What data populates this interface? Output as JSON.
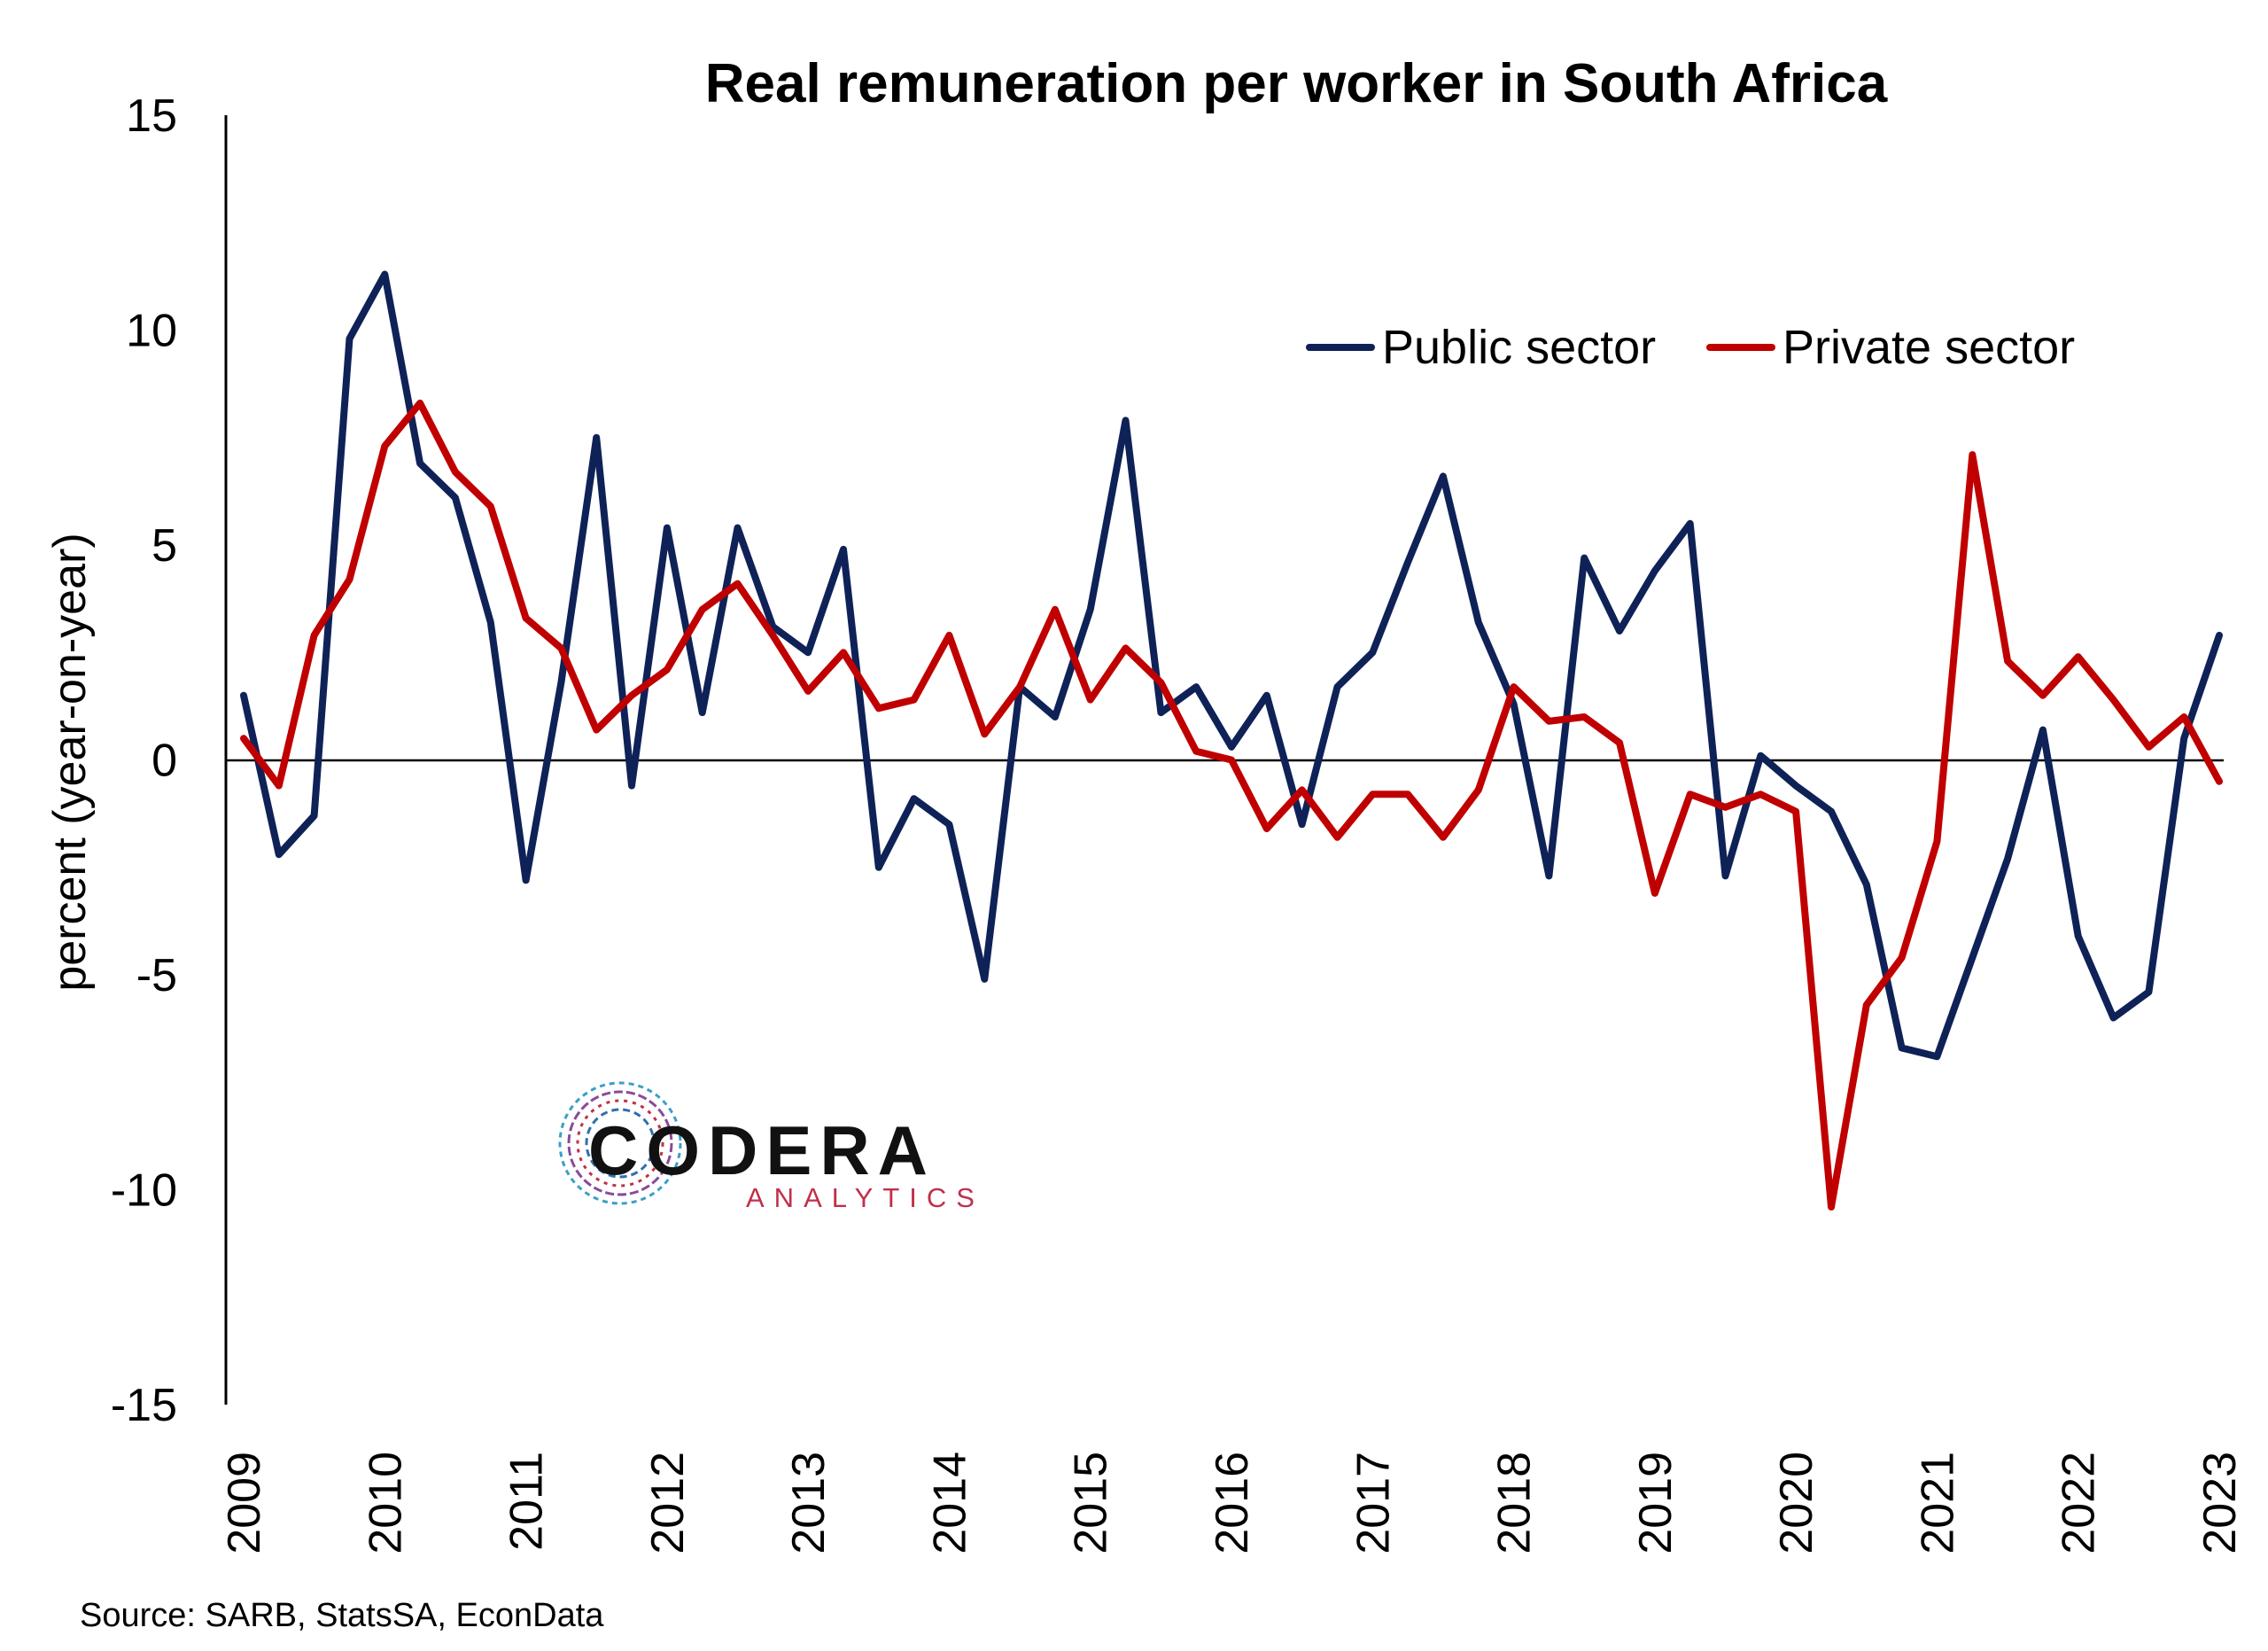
{
  "chart_data": {
    "type": "line",
    "title": "Real remuneration per worker in South Africa",
    "ylabel": "percent (year-on-year)",
    "xlabel": "",
    "ylim": [
      -15,
      15
    ],
    "yticks": [
      15,
      10,
      5,
      0,
      -5,
      -10,
      -15
    ],
    "ytick_labels": [
      "15",
      "10",
      "5",
      "0",
      "-5",
      "-10",
      "-15"
    ],
    "xlim": [
      2009,
      2023
    ],
    "xticks": [
      "2009",
      "2010",
      "2011",
      "2012",
      "2013",
      "2014",
      "2015",
      "2016",
      "2017",
      "2018",
      "2019",
      "2020",
      "2021",
      "2022",
      "2023"
    ],
    "legend_position": "top-right",
    "zero_line": true,
    "grid": false,
    "series": [
      {
        "name": "Public sector",
        "color": "#0f2257",
        "x": [
          2009.0,
          2009.25,
          2009.5,
          2009.75,
          2010.0,
          2010.25,
          2010.5,
          2010.75,
          2011.0,
          2011.25,
          2011.5,
          2011.75,
          2012.0,
          2012.25,
          2012.5,
          2012.75,
          2013.0,
          2013.25,
          2013.5,
          2013.75,
          2014.0,
          2014.25,
          2014.5,
          2014.75,
          2015.0,
          2015.25,
          2015.5,
          2015.75,
          2016.0,
          2016.25,
          2016.5,
          2016.75,
          2017.0,
          2017.25,
          2017.5,
          2017.75,
          2018.0,
          2018.25,
          2018.5,
          2018.75,
          2019.0,
          2019.25,
          2019.5,
          2019.75,
          2020.0,
          2020.25,
          2020.5,
          2020.75,
          2021.0,
          2021.25,
          2021.5,
          2021.75,
          2022.0,
          2022.25,
          2022.5,
          2022.75,
          2023.0
        ],
        "values": [
          1.5,
          -2.2,
          -1.3,
          9.8,
          11.3,
          6.9,
          6.1,
          3.2,
          -2.8,
          1.8,
          7.5,
          -0.6,
          5.4,
          1.1,
          5.4,
          3.1,
          2.5,
          4.9,
          -2.5,
          -0.9,
          -1.5,
          -5.1,
          1.7,
          1.0,
          3.5,
          7.9,
          1.1,
          1.7,
          0.3,
          1.5,
          -1.5,
          1.7,
          2.5,
          4.6,
          6.6,
          3.2,
          1.3,
          -2.7,
          4.7,
          3.0,
          4.4,
          5.5,
          -2.7,
          0.1,
          -0.6,
          -1.2,
          -2.9,
          -6.7,
          -6.9,
          -4.6,
          -2.3,
          0.7,
          -4.1,
          -6.0,
          -5.4,
          0.5,
          2.9
        ]
      },
      {
        "name": "Private sector",
        "color": "#c00000",
        "x": [
          2009.0,
          2009.25,
          2009.5,
          2009.75,
          2010.0,
          2010.25,
          2010.5,
          2010.75,
          2011.0,
          2011.25,
          2011.5,
          2011.75,
          2012.0,
          2012.25,
          2012.5,
          2012.75,
          2013.0,
          2013.25,
          2013.5,
          2013.75,
          2014.0,
          2014.25,
          2014.5,
          2014.75,
          2015.0,
          2015.25,
          2015.5,
          2015.75,
          2016.0,
          2016.25,
          2016.5,
          2016.75,
          2017.0,
          2017.25,
          2017.5,
          2017.75,
          2018.0,
          2018.25,
          2018.5,
          2018.75,
          2019.0,
          2019.25,
          2019.5,
          2019.75,
          2020.0,
          2020.25,
          2020.5,
          2020.75,
          2021.0,
          2021.25,
          2021.5,
          2021.75,
          2022.0,
          2022.25,
          2022.5,
          2022.75,
          2023.0
        ],
        "values": [
          0.5,
          -0.6,
          2.9,
          4.2,
          7.3,
          8.3,
          6.7,
          5.9,
          3.3,
          2.6,
          0.7,
          1.5,
          2.1,
          3.5,
          4.1,
          2.9,
          1.6,
          2.5,
          1.2,
          1.4,
          2.9,
          0.6,
          1.7,
          3.5,
          1.4,
          2.6,
          1.8,
          0.2,
          0.0,
          -1.6,
          -0.7,
          -1.8,
          -0.8,
          -0.8,
          -1.8,
          -0.7,
          1.7,
          0.9,
          1.0,
          0.4,
          -3.1,
          -0.8,
          -1.1,
          -0.8,
          -1.2,
          -10.4,
          -5.7,
          -4.6,
          -1.9,
          7.1,
          2.3,
          1.5,
          2.4,
          1.4,
          0.3,
          1.0,
          -0.5
        ]
      }
    ]
  },
  "logo": {
    "name": "CODERA",
    "sub": "ANALYTICS"
  },
  "source": "Source: SARB, StatsSA, EconData"
}
